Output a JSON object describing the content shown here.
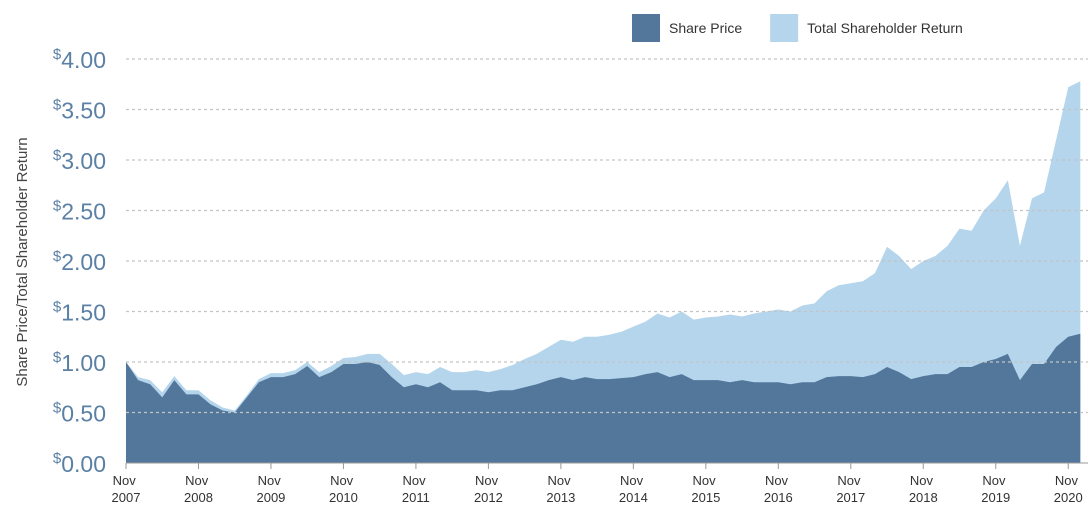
{
  "chart_data": {
    "type": "area",
    "y_axis_label": "Share Price/Total Shareholder Return",
    "categories": [
      "Nov 2007",
      null,
      null,
      null,
      null,
      null,
      "Nov 2008",
      null,
      null,
      null,
      null,
      null,
      "Nov 2009",
      null,
      null,
      null,
      null,
      null,
      "Nov 2010",
      null,
      null,
      null,
      null,
      null,
      "Nov 2011",
      null,
      null,
      null,
      null,
      null,
      "Nov 2012",
      null,
      null,
      null,
      null,
      null,
      "Nov 2013",
      null,
      null,
      null,
      null,
      null,
      "Nov 2014",
      null,
      null,
      null,
      null,
      null,
      "Nov 2015",
      null,
      null,
      null,
      null,
      null,
      "Nov 2016",
      null,
      null,
      null,
      null,
      null,
      "Nov 2017",
      null,
      null,
      null,
      null,
      null,
      "Nov 2018",
      null,
      null,
      null,
      null,
      null,
      "Nov 2019",
      null,
      null,
      null,
      null,
      null,
      "Nov 2020",
      null
    ],
    "series": [
      {
        "name": "Share Price",
        "color": "#52779b",
        "values": [
          1.0,
          0.82,
          0.78,
          0.65,
          0.82,
          0.68,
          0.68,
          0.58,
          0.52,
          0.5,
          0.65,
          0.8,
          0.85,
          0.85,
          0.88,
          0.96,
          0.85,
          0.9,
          0.98,
          0.98,
          1.0,
          0.97,
          0.85,
          0.75,
          0.78,
          0.75,
          0.8,
          0.72,
          0.72,
          0.72,
          0.7,
          0.72,
          0.72,
          0.75,
          0.78,
          0.82,
          0.85,
          0.82,
          0.85,
          0.83,
          0.83,
          0.84,
          0.85,
          0.88,
          0.9,
          0.85,
          0.88,
          0.82,
          0.82,
          0.82,
          0.8,
          0.82,
          0.8,
          0.8,
          0.8,
          0.78,
          0.8,
          0.8,
          0.85,
          0.86,
          0.86,
          0.85,
          0.88,
          0.95,
          0.9,
          0.83,
          0.86,
          0.88,
          0.88,
          0.95,
          0.95,
          1.0,
          1.03,
          1.08,
          0.82,
          0.98,
          0.98,
          1.15,
          1.25,
          1.28
        ]
      },
      {
        "name": "Total Shareholder Return",
        "color": "#b4d5ec",
        "values": [
          1.0,
          0.85,
          0.82,
          0.7,
          0.86,
          0.72,
          0.72,
          0.62,
          0.55,
          0.52,
          0.67,
          0.83,
          0.89,
          0.89,
          0.92,
          1.0,
          0.9,
          0.96,
          1.04,
          1.05,
          1.08,
          1.08,
          0.98,
          0.87,
          0.9,
          0.88,
          0.95,
          0.9,
          0.9,
          0.92,
          0.9,
          0.93,
          0.97,
          1.03,
          1.08,
          1.15,
          1.22,
          1.2,
          1.25,
          1.25,
          1.27,
          1.3,
          1.35,
          1.4,
          1.48,
          1.44,
          1.5,
          1.42,
          1.44,
          1.45,
          1.47,
          1.45,
          1.48,
          1.5,
          1.52,
          1.5,
          1.56,
          1.58,
          1.7,
          1.76,
          1.78,
          1.8,
          1.88,
          2.14,
          2.05,
          1.92,
          2.0,
          2.05,
          2.15,
          2.32,
          2.3,
          2.5,
          2.62,
          2.8,
          2.15,
          2.62,
          2.68,
          3.2,
          3.72,
          3.78
        ]
      }
    ],
    "ylim": [
      0,
      4
    ],
    "yticks": [
      {
        "value": 0,
        "label": "$0.00"
      },
      {
        "value": 0.5,
        "label": "$0.50"
      },
      {
        "value": 1,
        "label": "$1.00"
      },
      {
        "value": 1.5,
        "label": "$1.50"
      },
      {
        "value": 2,
        "label": "$2.00"
      },
      {
        "value": 2.5,
        "label": "$2.50"
      },
      {
        "value": 3,
        "label": "$3.00"
      },
      {
        "value": 3.5,
        "label": "$3.50"
      },
      {
        "value": 4,
        "label": "$4.00"
      }
    ],
    "grid": true,
    "legend": "top-right"
  }
}
